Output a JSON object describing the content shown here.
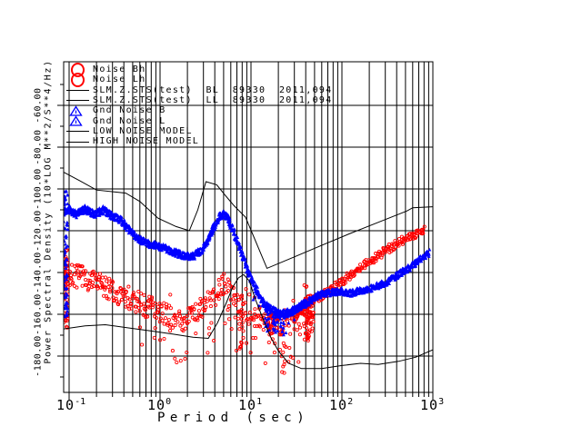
{
  "colors": {
    "red": "#ff0000",
    "blue": "#0000ff",
    "line": "#000000",
    "background": "#ffffff"
  },
  "axes": {
    "x": {
      "label": "Period (sec)",
      "scale": "log",
      "ticks": [
        {
          "base": "10",
          "exp": "-1",
          "value": 0.1
        },
        {
          "base": "10",
          "exp": "0",
          "value": 1
        },
        {
          "base": "10",
          "exp": "1",
          "value": 10
        },
        {
          "base": "10",
          "exp": "2",
          "value": 100
        },
        {
          "base": "10",
          "exp": "3",
          "value": 1000
        }
      ]
    },
    "y": {
      "label": "Power Spectral Density (10*LOG M**2/S**4/Hz)",
      "tick_values": [
        -60,
        -80,
        -100,
        -120,
        -140,
        -160,
        -180
      ],
      "tick_labels": [
        "-60.00",
        "-80.00",
        "-100.00",
        "-120.00",
        "-140.00",
        "-160.00",
        "-180.00"
      ],
      "minor_step": 10
    }
  },
  "legend": [
    {
      "label": "Noise Bh",
      "symbol": "circle",
      "color": "#ff0000"
    },
    {
      "label": "Noise Lh",
      "symbol": "circle",
      "color": "#ff0000"
    },
    {
      "label": "SLM.Z.STS(test)  BL  89330  2011,094",
      "symbol": "line",
      "color": "#000000"
    },
    {
      "label": "SLM.Z.STS(test)  LL  89330  2011,094",
      "symbol": "line",
      "color": "#000000"
    },
    {
      "label": "Gnd Noise B",
      "symbol": "triangle",
      "color": "#0000ff"
    },
    {
      "label": "Gnd Noise L",
      "symbol": "triangle",
      "color": "#0000ff"
    },
    {
      "label": "LOW NOISE MODEL",
      "symbol": "line",
      "color": "#000000"
    },
    {
      "label": "HIGH NOISE MODEL",
      "symbol": "line",
      "color": "#000000"
    }
  ],
  "chart_data": {
    "type": "scatter",
    "title": "",
    "xlabel": "Period (sec)",
    "ylabel": "Power Spectral Density (10*LOG M**2/S**4/Hz)",
    "x_scale": "log",
    "xlim": [
      0.087,
      1000
    ],
    "ylim": [
      -197,
      -39
    ],
    "grid": true,
    "legend_position": "upper-left-inside",
    "seed": 7,
    "series": [
      {
        "name": "Noise Bh",
        "type": "scatter",
        "marker": "circle",
        "color": "#ff0000",
        "spread": 5.5,
        "density": 170,
        "rows": 1,
        "points": [
          [
            0.087,
            -140
          ],
          [
            0.1,
            -141
          ],
          [
            0.13,
            -142
          ],
          [
            0.17,
            -144
          ],
          [
            0.22,
            -146
          ],
          [
            0.3,
            -149
          ],
          [
            0.4,
            -151.5
          ],
          [
            0.55,
            -154
          ],
          [
            0.75,
            -156.5
          ],
          [
            1.0,
            -159
          ],
          [
            1.3,
            -161
          ],
          [
            1.7,
            -163
          ],
          [
            2.2,
            -162
          ],
          [
            2.8,
            -158
          ],
          [
            3.5,
            -153
          ],
          [
            4.3,
            -148
          ],
          [
            5.0,
            -146
          ],
          [
            5.8,
            -148
          ],
          [
            7.0,
            -153
          ],
          [
            8.5,
            -157
          ],
          [
            10,
            -160
          ],
          [
            12,
            -162
          ],
          [
            15,
            -164
          ],
          [
            19,
            -165
          ],
          [
            25,
            -164
          ],
          [
            32,
            -162
          ],
          [
            40,
            -160
          ],
          [
            50,
            -158
          ]
        ],
        "outliers": {
          "fraction": 0.15,
          "depth": 22,
          "range": [
            0.5,
            35
          ]
        },
        "up_outliers": {
          "fraction": 0.07,
          "depth": 6
        },
        "streaks": [
          [
            16.5,
            -160,
            -174,
            20
          ],
          [
            23,
            -166,
            -192,
            14
          ],
          [
            7.8,
            -158,
            -178,
            14
          ]
        ],
        "edge_smear": {
          "v1": -129,
          "v2": -167,
          "n": 60
        }
      },
      {
        "name": "Noise Lh",
        "type": "scatter",
        "marker": "circle",
        "color": "#ff0000",
        "spread": 2.0,
        "density": 170,
        "rows": 1,
        "points": [
          [
            30,
            -162
          ],
          [
            40,
            -157
          ],
          [
            50,
            -153
          ],
          [
            62,
            -151
          ],
          [
            78,
            -148
          ],
          [
            95,
            -145
          ],
          [
            120,
            -141.5
          ],
          [
            150,
            -138.5
          ],
          [
            190,
            -135.5
          ],
          [
            240,
            -132.5
          ],
          [
            300,
            -129.5
          ],
          [
            380,
            -127
          ],
          [
            480,
            -124.5
          ],
          [
            600,
            -122
          ],
          [
            700,
            -121
          ],
          [
            800,
            -119.5
          ]
        ],
        "streaks": [
          [
            41,
            -146,
            -175,
            38
          ],
          [
            46,
            -149,
            -170,
            24
          ]
        ]
      },
      {
        "name": "Gnd Noise B",
        "type": "scatter",
        "marker": "triangle",
        "color": "#0000ff",
        "spread": 1.8,
        "density": 200,
        "rows": 2,
        "points": [
          [
            0.087,
            -111
          ],
          [
            0.1,
            -110
          ],
          [
            0.12,
            -112
          ],
          [
            0.15,
            -109.5
          ],
          [
            0.19,
            -112
          ],
          [
            0.24,
            -110
          ],
          [
            0.3,
            -113
          ],
          [
            0.37,
            -115
          ],
          [
            0.45,
            -119
          ],
          [
            0.55,
            -123
          ],
          [
            0.7,
            -126
          ],
          [
            0.9,
            -127
          ],
          [
            1.1,
            -128
          ],
          [
            1.4,
            -130
          ],
          [
            1.8,
            -132
          ],
          [
            2.3,
            -132
          ],
          [
            2.8,
            -130
          ],
          [
            3.3,
            -125
          ],
          [
            3.9,
            -118.5
          ],
          [
            4.5,
            -113.5
          ],
          [
            5.0,
            -112
          ],
          [
            5.6,
            -114
          ],
          [
            6.5,
            -121
          ],
          [
            7.5,
            -128
          ],
          [
            8.7,
            -136
          ],
          [
            10,
            -143
          ],
          [
            12,
            -150
          ],
          [
            14,
            -155
          ],
          [
            17,
            -158
          ],
          [
            21,
            -160
          ],
          [
            26,
            -159
          ],
          [
            33,
            -157
          ],
          [
            40,
            -154.5
          ]
        ],
        "outliers": {
          "fraction": 0.05,
          "depth": 10,
          "range": [
            10,
            30
          ]
        },
        "streaks": [
          [
            15,
            -157,
            -170,
            14
          ],
          [
            18.5,
            -158,
            -172,
            14
          ],
          [
            22,
            -159,
            -169,
            10
          ]
        ],
        "edge_smear": {
          "v1": -101,
          "v2": -162,
          "n": 80
        }
      },
      {
        "name": "Gnd Noise L",
        "type": "scatter",
        "marker": "triangle",
        "color": "#0000ff",
        "spread": 1.6,
        "density": 170,
        "rows": 2,
        "points": [
          [
            25,
            -160
          ],
          [
            32,
            -157.5
          ],
          [
            40,
            -155
          ],
          [
            50,
            -152
          ],
          [
            62,
            -150
          ],
          [
            80,
            -149.5
          ],
          [
            100,
            -149
          ],
          [
            125,
            -150
          ],
          [
            160,
            -148.5
          ],
          [
            200,
            -148
          ],
          [
            260,
            -146
          ],
          [
            330,
            -144
          ],
          [
            420,
            -141
          ],
          [
            520,
            -138.5
          ],
          [
            650,
            -135.5
          ],
          [
            800,
            -132.5
          ],
          [
            900,
            -130.5
          ]
        ]
      },
      {
        "name": "LOW NOISE MODEL",
        "type": "line",
        "color": "#000000",
        "points": [
          [
            0.087,
            -167
          ],
          [
            0.15,
            -165.5
          ],
          [
            0.25,
            -165
          ],
          [
            0.45,
            -166.5
          ],
          [
            0.8,
            -168
          ],
          [
            1.4,
            -169.5
          ],
          [
            2.3,
            -171
          ],
          [
            3.4,
            -171.5
          ],
          [
            4.3,
            -164
          ],
          [
            5.3,
            -155
          ],
          [
            6.3,
            -147
          ],
          [
            7.3,
            -142.5
          ],
          [
            8.3,
            -141
          ],
          [
            9.6,
            -144
          ],
          [
            11,
            -152
          ],
          [
            13.5,
            -162
          ],
          [
            16.5,
            -171
          ],
          [
            20,
            -177.5
          ],
          [
            26,
            -183.5
          ],
          [
            36,
            -186
          ],
          [
            60,
            -186
          ],
          [
            100,
            -184.5
          ],
          [
            160,
            -183.5
          ],
          [
            250,
            -184
          ],
          [
            420,
            -182.5
          ],
          [
            650,
            -180.5
          ],
          [
            1000,
            -177
          ]
        ]
      },
      {
        "name": "HIGH NOISE MODEL",
        "type": "line",
        "color": "#000000",
        "points": [
          [
            0.087,
            -92
          ],
          [
            0.13,
            -96
          ],
          [
            0.2,
            -100.5
          ],
          [
            0.42,
            -102
          ],
          [
            0.6,
            -106
          ],
          [
            0.95,
            -114
          ],
          [
            1.5,
            -118
          ],
          [
            2.1,
            -120
          ],
          [
            2.6,
            -110
          ],
          [
            3.2,
            -96.5
          ],
          [
            4.2,
            -98
          ],
          [
            5.2,
            -103
          ],
          [
            6.5,
            -108
          ],
          [
            8.7,
            -113.5
          ],
          [
            11,
            -124
          ],
          [
            15,
            -138
          ],
          [
            30,
            -132.5
          ],
          [
            60,
            -127
          ],
          [
            120,
            -121.5
          ],
          [
            250,
            -116
          ],
          [
            520,
            -110.5
          ],
          [
            600,
            -109
          ],
          [
            1000,
            -108.5
          ]
        ]
      }
    ]
  }
}
